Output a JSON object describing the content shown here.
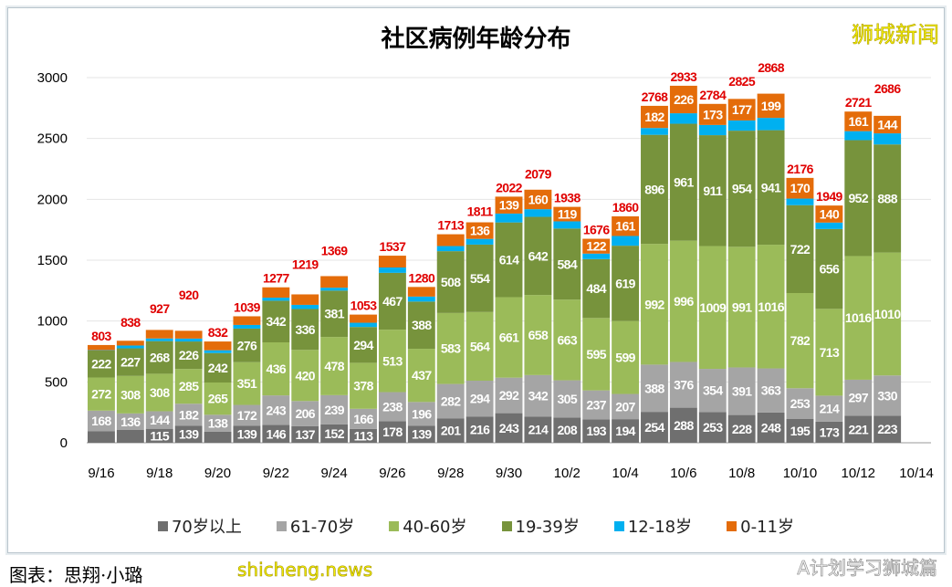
{
  "watermarks": {
    "top_right": "狮城新闻",
    "bottom_left": "shicheng.news",
    "bottom_right": "A计划学习狮城篇"
  },
  "caption": "图表：思翔·小璐",
  "chart_data": {
    "type": "bar",
    "stacked": true,
    "title": "社区病例年龄分布",
    "xlabel": "",
    "ylabel": "",
    "ylim": [
      0,
      3000
    ],
    "yticks": [
      0,
      500,
      1000,
      1500,
      2000,
      2500,
      3000
    ],
    "grid": true,
    "legend_position": "bottom",
    "x_tick_labels": [
      "9/16",
      "9/18",
      "9/20",
      "9/22",
      "9/24",
      "9/26",
      "9/28",
      "9/30",
      "10/2",
      "10/4",
      "10/6",
      "10/8",
      "10/10",
      "10/12",
      "10/14"
    ],
    "categories": [
      "9/16",
      "9/17",
      "9/18",
      "9/19",
      "9/20",
      "9/21",
      "9/22",
      "9/23",
      "9/24",
      "9/25",
      "9/26",
      "9/27",
      "9/28",
      "9/29",
      "9/30",
      "10/1",
      "10/2",
      "10/3",
      "10/4",
      "10/5",
      "10/6",
      "10/7",
      "10/8",
      "10/9",
      "10/10",
      "10/11",
      "10/12",
      "10/13",
      "10/14"
    ],
    "series": [
      {
        "name": "70岁以上",
        "color": "#6f6f6f",
        "values": [
          96,
          105,
          115,
          139,
          92,
          139,
          146,
          137,
          152,
          113,
          178,
          139,
          201,
          216,
          243,
          214,
          208,
          193,
          194,
          254,
          288,
          253,
          228,
          248,
          195,
          173,
          221,
          223,
          null
        ]
      },
      {
        "name": "61-70岁",
        "color": "#a5a5a5",
        "values": [
          168,
          136,
          144,
          182,
          138,
          172,
          243,
          206,
          239,
          166,
          238,
          196,
          282,
          294,
          292,
          342,
          305,
          237,
          207,
          388,
          376,
          354,
          391,
          363,
          253,
          214,
          297,
          330,
          null
        ]
      },
      {
        "name": "40-60岁",
        "color": "#9bbb59",
        "values": [
          272,
          308,
          308,
          285,
          265,
          351,
          436,
          420,
          478,
          378,
          513,
          437,
          583,
          564,
          661,
          658,
          663,
          595,
          599,
          992,
          996,
          1009,
          991,
          1016,
          782,
          713,
          1016,
          1010,
          null
        ]
      },
      {
        "name": "19-39岁",
        "color": "#77933c",
        "values": [
          222,
          227,
          268,
          226,
          242,
          276,
          342,
          336,
          381,
          294,
          467,
          388,
          508,
          554,
          614,
          642,
          584,
          484,
          619,
          896,
          961,
          911,
          954,
          941,
          722,
          656,
          952,
          888,
          null
        ]
      },
      {
        "name": "12-18岁",
        "color": "#00b0f0",
        "values": [
          3,
          23,
          22,
          24,
          23,
          30,
          25,
          34,
          24,
          35,
          44,
          41,
          42,
          47,
          73,
          63,
          59,
          45,
          80,
          56,
          86,
          84,
          84,
          101,
          54,
          53,
          74,
          91,
          null
        ]
      },
      {
        "name": "0-11岁",
        "color": "#e46c0a",
        "values": [
          42,
          39,
          70,
          64,
          72,
          71,
          85,
          86,
          95,
          67,
          97,
          79,
          97,
          136,
          139,
          160,
          119,
          122,
          161,
          182,
          226,
          173,
          177,
          199,
          170,
          140,
          161,
          144,
          null
        ]
      }
    ],
    "totals": [
      803,
      838,
      927,
      920,
      832,
      1039,
      1277,
      1219,
      1369,
      1053,
      1537,
      1280,
      1713,
      1811,
      2022,
      2079,
      1938,
      1676,
      1860,
      2768,
      2933,
      2784,
      2825,
      2868,
      2176,
      1949,
      2721,
      2686,
      null
    ],
    "total_label_color": "#e00000"
  }
}
